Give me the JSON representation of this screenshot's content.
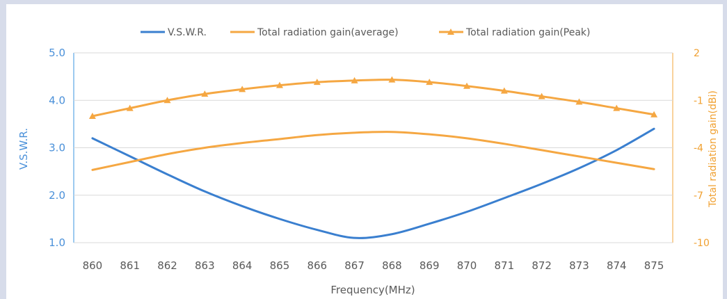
{
  "chart_data": {
    "type": "line",
    "x": [
      860,
      861,
      862,
      863,
      864,
      865,
      866,
      867,
      868,
      869,
      870,
      871,
      872,
      873,
      874,
      875
    ],
    "xlabel": "Frequency(MHz)",
    "ylabel": "V.S.W.R.",
    "y2label": "Total radiation gain(dBi)",
    "ylim": [
      1.0,
      5.0
    ],
    "y2lim": [
      -10,
      2
    ],
    "yticks": [
      "1.0",
      "2.0",
      "3.0",
      "4.0",
      "5.0"
    ],
    "y2ticks": [
      "-10",
      "-7",
      "-4",
      "-1",
      "2"
    ],
    "grid": true,
    "legend_position": "top",
    "series": [
      {
        "name": "V.S.W.R.",
        "axis": "left",
        "color": "#3a7fcf",
        "marker": "none",
        "values": [
          3.2,
          2.82,
          2.44,
          2.08,
          1.77,
          1.5,
          1.27,
          1.1,
          1.18,
          1.4,
          1.65,
          1.94,
          2.24,
          2.57,
          2.95,
          3.4
        ]
      },
      {
        "name": "Total radiation gain(average)",
        "axis": "right",
        "color": "#f5a742",
        "marker": "none",
        "values": [
          -5.4,
          -4.9,
          -4.4,
          -4.0,
          -3.7,
          -3.45,
          -3.2,
          -3.05,
          -3.0,
          -3.15,
          -3.4,
          -3.75,
          -4.15,
          -4.55,
          -4.95,
          -5.35
        ]
      },
      {
        "name": "Total radiation gain(Peak)",
        "axis": "right",
        "color": "#f5a742",
        "marker": "triangle",
        "values": [
          -2.0,
          -1.5,
          -1.0,
          -0.6,
          -0.3,
          -0.05,
          0.15,
          0.25,
          0.3,
          0.15,
          -0.1,
          -0.4,
          -0.75,
          -1.1,
          -1.5,
          -1.9
        ]
      }
    ]
  }
}
